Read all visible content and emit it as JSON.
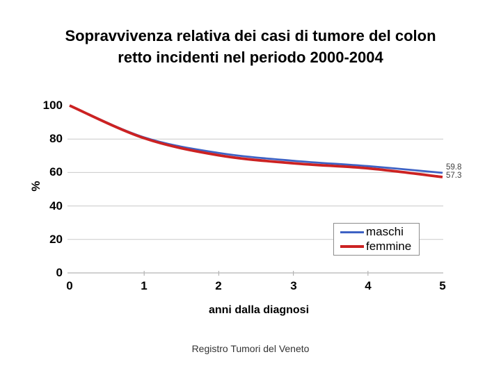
{
  "slide": {
    "title_lines": [
      "Sopravvivenza relativa dei casi di tumore del colon",
      "retto incidenti nel periodo 2000-2004"
    ],
    "footer": "Registro Tumori del Veneto"
  },
  "chart_data": {
    "type": "line",
    "title": "Sopravvivenza relativa dei casi di tumore del colon retto incidenti nel periodo 2000-2004",
    "xlabel": "anni dalla diagnosi",
    "ylabel": "%",
    "x": [
      0,
      1,
      2,
      3,
      4,
      5
    ],
    "series": [
      {
        "name": "maschi",
        "color": "#3E62C4",
        "line_width": 2.8,
        "values": [
          100,
          81,
          71.7,
          67,
          63.8,
          59.8
        ],
        "end_label": "59.8"
      },
      {
        "name": "femmine",
        "color": "#CC2222",
        "line_width": 3.8,
        "values": [
          100,
          80.5,
          70.3,
          65.5,
          62.5,
          57.3
        ],
        "end_label": "57.3"
      }
    ],
    "ylim": [
      0,
      100
    ],
    "y_ticks": [
      0,
      20,
      40,
      60,
      80,
      100
    ],
    "x_ticks": [
      0,
      1,
      2,
      3,
      4,
      5
    ],
    "grid": "horizontal-major, no line at 100",
    "legend_position": "inside-lower-right",
    "smooth_lines": true,
    "colors": {
      "grid": "#c9c9c9",
      "axis": "#b4b4b4",
      "tick_label": "#000000",
      "end_label": "#404040",
      "legend_border": "#8c8c8c",
      "background": "#ffffff"
    }
  }
}
